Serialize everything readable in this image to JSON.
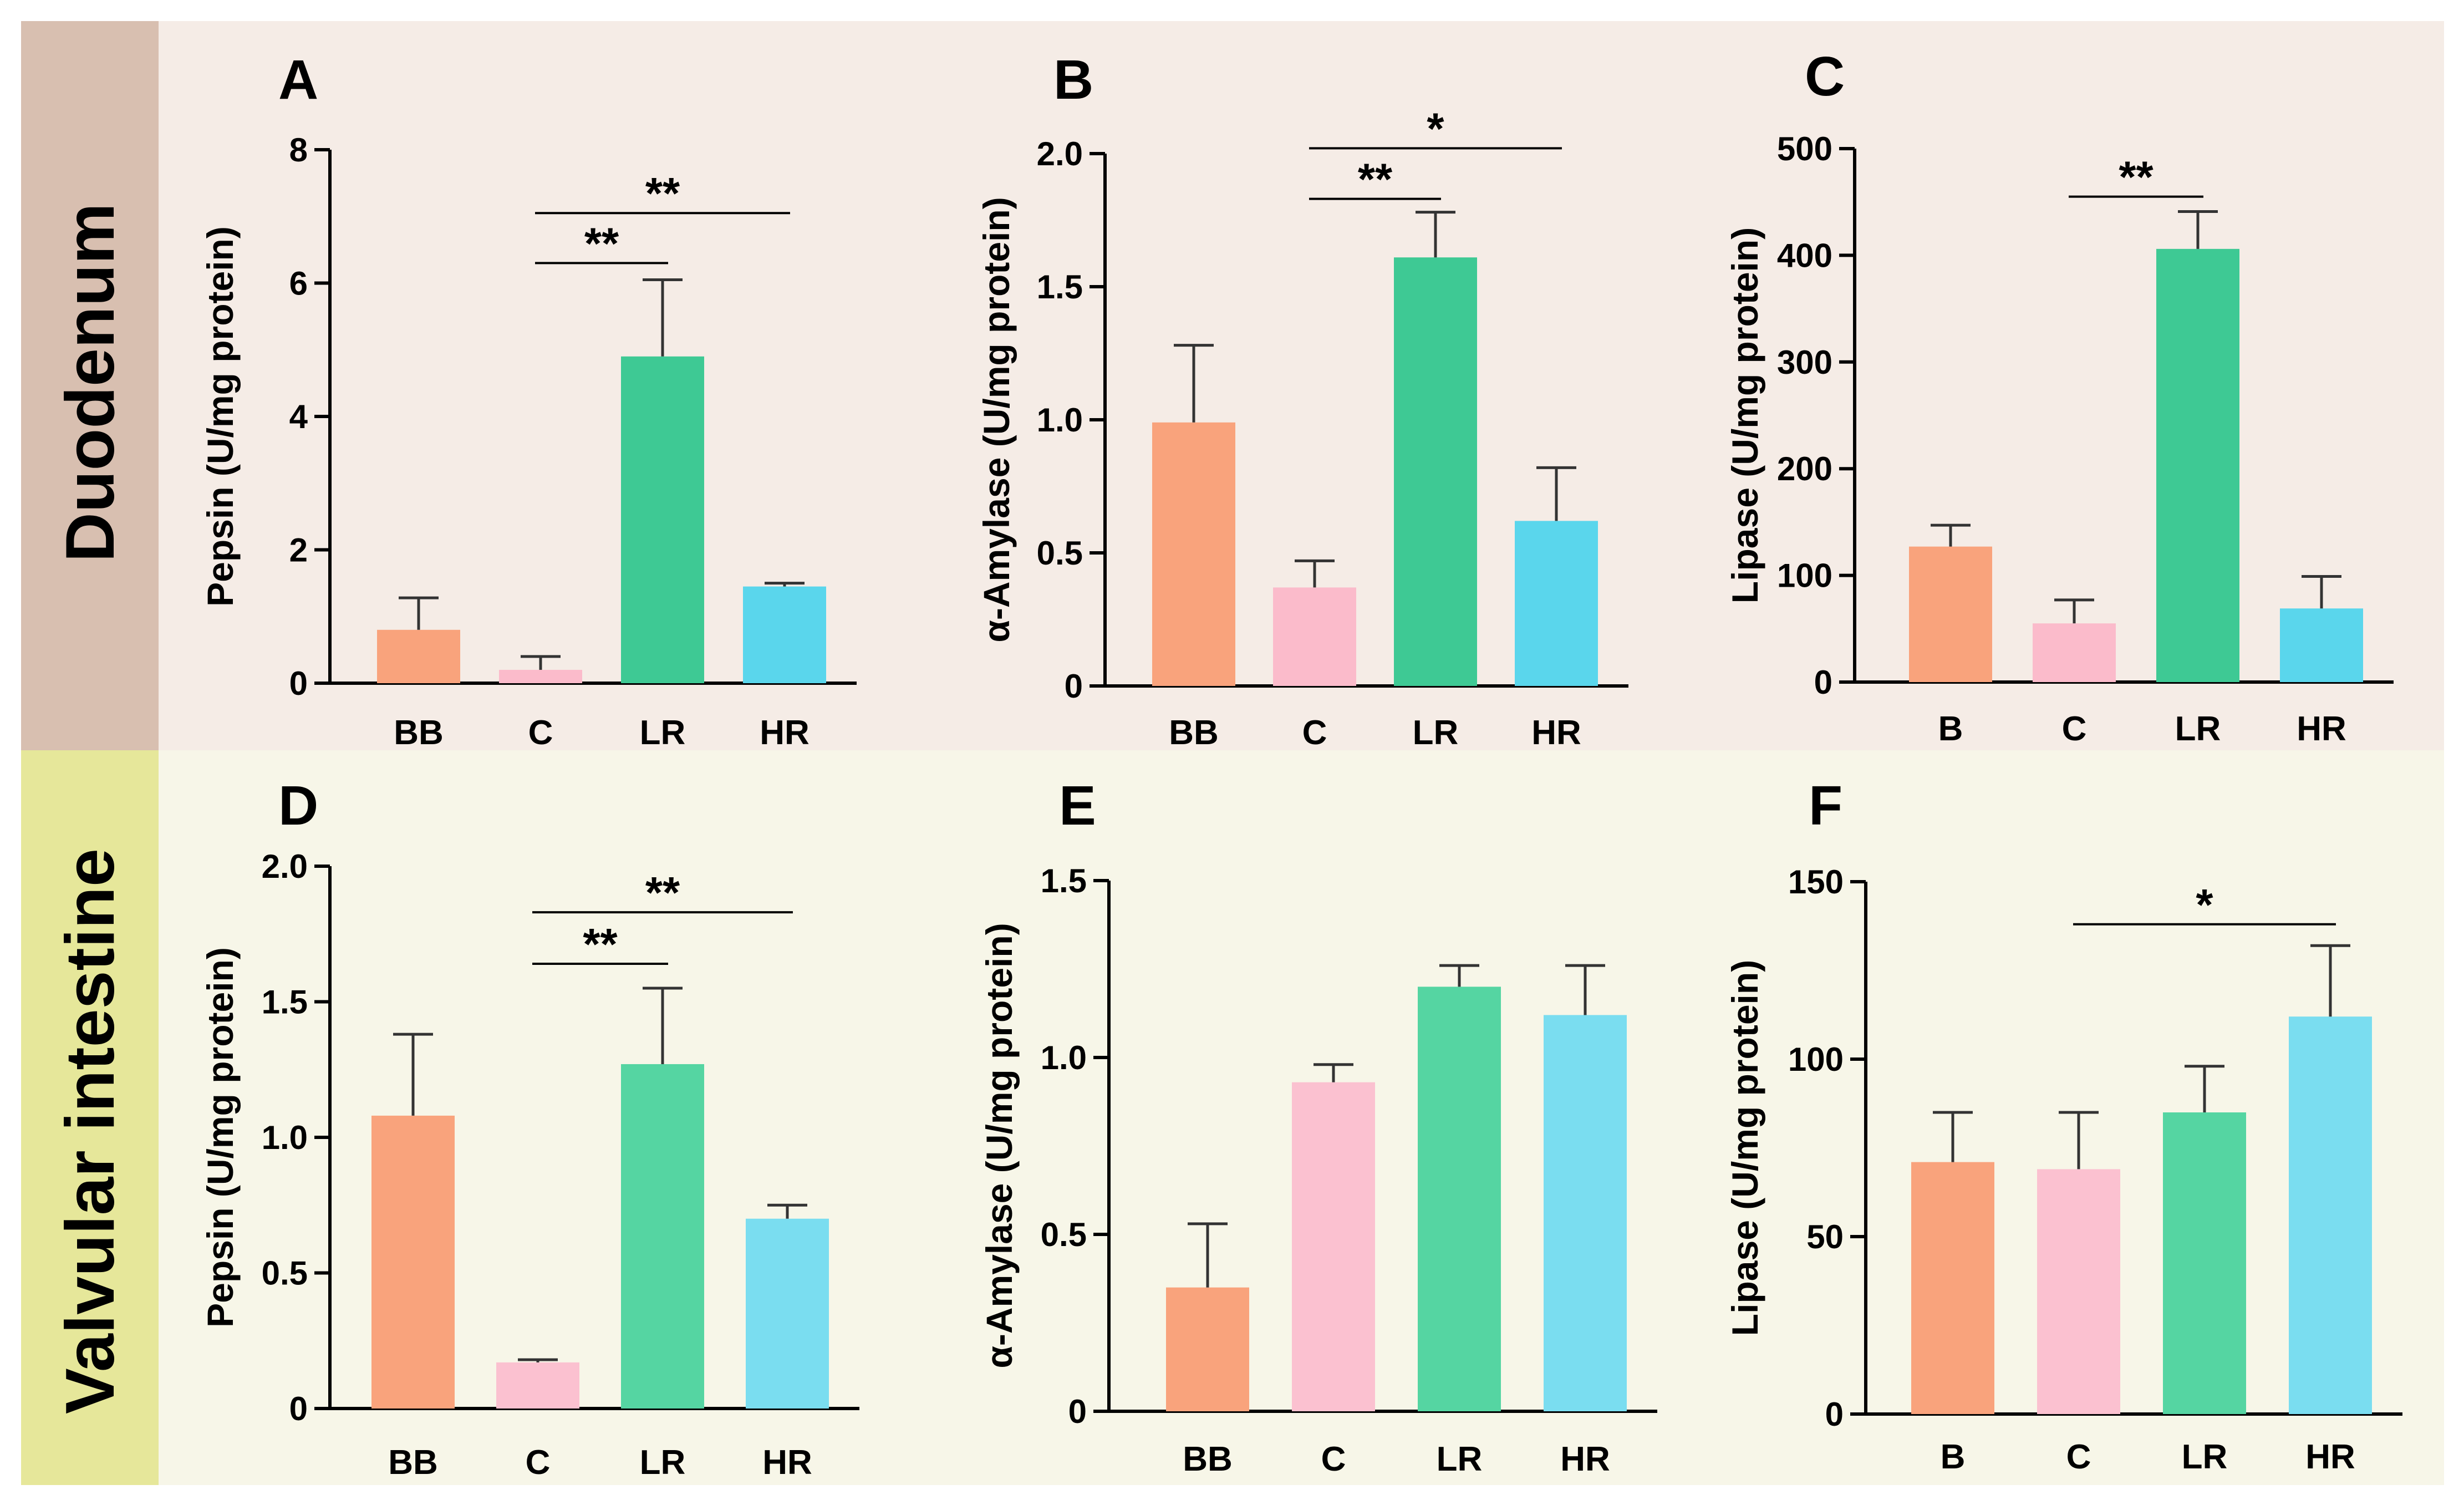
{
  "rows": [
    {
      "label": "Duodenum",
      "label_color": "#d8bfb0",
      "bg_color": "#f5ece6"
    },
    {
      "label": "Valvular intestine",
      "label_color": "#e6e79a",
      "bg_color": "#f7f6e8"
    }
  ],
  "colors": {
    "BB": "#f9a37c",
    "B": "#f9a37c",
    "C": "#fbbbcb",
    "LR": "#3ec994",
    "HR": "#5ad6ec",
    "C_light": "#fbc1d0",
    "LR_light": "#55d5a2",
    "HR_light": "#7addf0"
  },
  "chart_data": [
    {
      "panel": "A",
      "type": "bar",
      "ylabel": "Pepsin (U/mg protein)",
      "categories": [
        "BB",
        "C",
        "LR",
        "HR"
      ],
      "values": [
        0.8,
        0.2,
        4.9,
        1.45
      ],
      "errors": [
        0.48,
        0.2,
        1.15,
        0.05
      ],
      "ylim": [
        0,
        8
      ],
      "yticks": [
        "0",
        "2",
        "4",
        "6",
        "8"
      ],
      "ytick_values": [
        0,
        2,
        4,
        6,
        8
      ],
      "sig": [
        {
          "from": "C",
          "to": "LR",
          "label": "**",
          "y": 6.3
        },
        {
          "from": "C",
          "to": "HR",
          "label": "**",
          "y": 7.05
        }
      ]
    },
    {
      "panel": "B",
      "type": "bar",
      "ylabel": "α-Amylase (U/mg protein)",
      "categories": [
        "BB",
        "C",
        "LR",
        "HR"
      ],
      "values": [
        0.99,
        0.37,
        1.61,
        0.62
      ],
      "errors": [
        0.29,
        0.1,
        0.17,
        0.2
      ],
      "ylim": [
        0,
        2.0
      ],
      "yticks": [
        "0",
        "0.5",
        "1.0",
        "1.5",
        "2.0"
      ],
      "ytick_values": [
        0,
        0.5,
        1.0,
        1.5,
        2.0
      ],
      "sig": [
        {
          "from": "C",
          "to": "LR",
          "label": "**",
          "y": 1.83
        },
        {
          "from": "C",
          "to": "HR",
          "label": "*",
          "y": 2.02
        }
      ]
    },
    {
      "panel": "C",
      "type": "bar",
      "ylabel": "Lipase (U/mg protein)",
      "categories": [
        "B",
        "C",
        "LR",
        "HR"
      ],
      "values": [
        127,
        55,
        406,
        69
      ],
      "errors": [
        20,
        22,
        35,
        30
      ],
      "ylim": [
        0,
        500
      ],
      "yticks": [
        "0",
        "100",
        "200",
        "300",
        "400",
        "500"
      ],
      "ytick_values": [
        0,
        100,
        200,
        300,
        400,
        500
      ],
      "sig": [
        {
          "from": "C",
          "to": "LR",
          "label": "**",
          "y": 455
        }
      ]
    },
    {
      "panel": "D",
      "type": "bar",
      "ylabel": "Pepsin (U/mg protein)",
      "categories": [
        "BB",
        "C",
        "LR",
        "HR"
      ],
      "values": [
        1.08,
        0.17,
        1.27,
        0.7
      ],
      "errors": [
        0.3,
        0.01,
        0.28,
        0.05
      ],
      "ylim": [
        0,
        2.0
      ],
      "yticks": [
        "0",
        "0.5",
        "1.0",
        "1.5",
        "2.0"
      ],
      "ytick_values": [
        0,
        0.5,
        1.0,
        1.5,
        2.0
      ],
      "sig": [
        {
          "from": "C",
          "to": "LR",
          "label": "**",
          "y": 1.64
        },
        {
          "from": "C",
          "to": "HR",
          "label": "**",
          "y": 1.83
        }
      ]
    },
    {
      "panel": "E",
      "type": "bar",
      "ylabel": "α-Amylase (U/mg protein)",
      "categories": [
        "BB",
        "C",
        "LR",
        "HR"
      ],
      "values": [
        0.35,
        0.93,
        1.2,
        1.12
      ],
      "errors": [
        0.18,
        0.05,
        0.06,
        0.14
      ],
      "ylim": [
        0,
        1.5
      ],
      "yticks": [
        "0",
        "0.5",
        "1.0",
        "1.5"
      ],
      "ytick_values": [
        0,
        0.5,
        1.0,
        1.5
      ],
      "sig": []
    },
    {
      "panel": "F",
      "type": "bar",
      "ylabel": "Lipase (U/mg protein)",
      "categories": [
        "B",
        "C",
        "LR",
        "HR"
      ],
      "values": [
        71,
        69,
        85,
        112
      ],
      "errors": [
        14,
        16,
        13,
        20
      ],
      "ylim": [
        0,
        150
      ],
      "yticks": [
        "0",
        "50",
        "100",
        "150"
      ],
      "ytick_values": [
        0,
        50,
        100,
        150
      ],
      "sig": [
        {
          "from": "C",
          "to": "HR",
          "label": "*",
          "y": 138
        }
      ]
    }
  ]
}
